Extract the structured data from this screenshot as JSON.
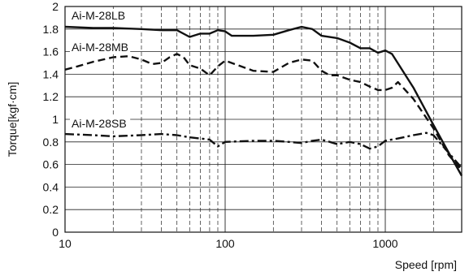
{
  "chart_data": {
    "type": "line",
    "title": "",
    "xlabel": "Speed [rpm]",
    "ylabel": "Torque[kgf·cm]",
    "xscale": "log",
    "xlim": [
      10,
      3000
    ],
    "ylim": [
      0,
      2
    ],
    "grid": true,
    "x_ticks": [
      {
        "v": 10,
        "label": "10"
      },
      {
        "v": 100,
        "label": "100"
      },
      {
        "v": 1000,
        "label": "1000"
      }
    ],
    "y_ticks": [
      {
        "v": 0,
        "label": "0"
      },
      {
        "v": 0.2,
        "label": "0.2"
      },
      {
        "v": 0.4,
        "label": "0.4"
      },
      {
        "v": 0.6,
        "label": "0.6"
      },
      {
        "v": 0.8,
        "label": "0.8"
      },
      {
        "v": 1,
        "label": "1"
      },
      {
        "v": 1.2,
        "label": "1.2"
      },
      {
        "v": 1.4,
        "label": "1.4"
      },
      {
        "v": 1.6,
        "label": "1.6"
      },
      {
        "v": 1.8,
        "label": "1.8"
      },
      {
        "v": 2,
        "label": "2"
      }
    ],
    "series": [
      {
        "name": "Ai-M-28LB",
        "style": "solid",
        "points": [
          [
            10,
            1.82
          ],
          [
            15,
            1.81
          ],
          [
            20,
            1.81
          ],
          [
            30,
            1.8
          ],
          [
            40,
            1.79
          ],
          [
            50,
            1.79
          ],
          [
            60,
            1.73
          ],
          [
            70,
            1.76
          ],
          [
            80,
            1.76
          ],
          [
            90,
            1.79
          ],
          [
            100,
            1.78
          ],
          [
            110,
            1.74
          ],
          [
            150,
            1.74
          ],
          [
            200,
            1.75
          ],
          [
            250,
            1.79
          ],
          [
            300,
            1.82
          ],
          [
            350,
            1.8
          ],
          [
            400,
            1.74
          ],
          [
            500,
            1.72
          ],
          [
            600,
            1.68
          ],
          [
            700,
            1.63
          ],
          [
            800,
            1.63
          ],
          [
            900,
            1.59
          ],
          [
            1000,
            1.61
          ],
          [
            1100,
            1.58
          ],
          [
            1500,
            1.28
          ],
          [
            2000,
            0.95
          ],
          [
            2500,
            0.7
          ],
          [
            3000,
            0.5
          ]
        ]
      },
      {
        "name": "Ai-M-28MB",
        "style": "dashed",
        "points": [
          [
            10,
            1.44
          ],
          [
            12,
            1.47
          ],
          [
            15,
            1.51
          ],
          [
            20,
            1.55
          ],
          [
            25,
            1.56
          ],
          [
            30,
            1.53
          ],
          [
            35,
            1.49
          ],
          [
            40,
            1.5
          ],
          [
            45,
            1.55
          ],
          [
            50,
            1.58
          ],
          [
            55,
            1.55
          ],
          [
            60,
            1.48
          ],
          [
            70,
            1.45
          ],
          [
            80,
            1.39
          ],
          [
            90,
            1.47
          ],
          [
            100,
            1.52
          ],
          [
            120,
            1.48
          ],
          [
            150,
            1.43
          ],
          [
            200,
            1.42
          ],
          [
            250,
            1.5
          ],
          [
            300,
            1.53
          ],
          [
            350,
            1.52
          ],
          [
            400,
            1.43
          ],
          [
            450,
            1.39
          ],
          [
            500,
            1.39
          ],
          [
            600,
            1.35
          ],
          [
            700,
            1.33
          ],
          [
            800,
            1.29
          ],
          [
            900,
            1.26
          ],
          [
            1000,
            1.26
          ],
          [
            1100,
            1.28
          ],
          [
            1200,
            1.33
          ],
          [
            1500,
            1.18
          ],
          [
            2000,
            0.92
          ],
          [
            2500,
            0.68
          ],
          [
            3000,
            0.55
          ]
        ]
      },
      {
        "name": "Ai-M-28SB",
        "style": "dashdot",
        "points": [
          [
            10,
            0.87
          ],
          [
            15,
            0.86
          ],
          [
            20,
            0.85
          ],
          [
            30,
            0.86
          ],
          [
            40,
            0.87
          ],
          [
            50,
            0.86
          ],
          [
            60,
            0.84
          ],
          [
            70,
            0.83
          ],
          [
            80,
            0.82
          ],
          [
            90,
            0.76
          ],
          [
            100,
            0.8
          ],
          [
            150,
            0.81
          ],
          [
            200,
            0.81
          ],
          [
            250,
            0.8
          ],
          [
            300,
            0.79
          ],
          [
            350,
            0.81
          ],
          [
            400,
            0.82
          ],
          [
            450,
            0.8
          ],
          [
            500,
            0.78
          ],
          [
            600,
            0.8
          ],
          [
            700,
            0.78
          ],
          [
            800,
            0.74
          ],
          [
            900,
            0.76
          ],
          [
            1000,
            0.81
          ],
          [
            1200,
            0.83
          ],
          [
            1500,
            0.86
          ],
          [
            1800,
            0.88
          ],
          [
            2000,
            0.86
          ],
          [
            2500,
            0.7
          ],
          [
            3000,
            0.57
          ]
        ]
      }
    ]
  }
}
